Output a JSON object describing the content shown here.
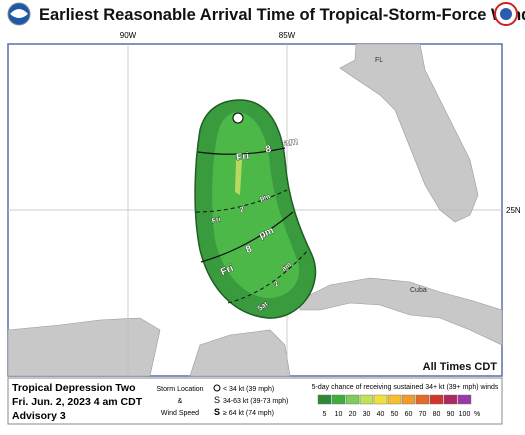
{
  "header": {
    "title": "Earliest Reasonable Arrival Time of Tropical-Storm-Force Winds"
  },
  "map": {
    "lon_labels": [
      "90W",
      "85W"
    ],
    "lat_labels": [
      "25N"
    ],
    "places": [
      "FL",
      "Cuba"
    ],
    "time_labels": [
      {
        "day": "Fri",
        "hour": "8",
        "period": "am"
      },
      {
        "day": "Fri",
        "hour": "2",
        "period": "pm"
      },
      {
        "day": "Fri",
        "hour": "8",
        "period": "pm"
      },
      {
        "day": "Sat",
        "hour": "2",
        "period": "am"
      }
    ],
    "note": "All Times CDT"
  },
  "legend": {
    "storm": [
      "Tropical Depression Two",
      "Fri. Jun. 2, 2023  4 am CDT",
      "Advisory 3"
    ],
    "symbols_title": [
      "Storm Location",
      "&",
      "Wind Speed"
    ],
    "symbols": [
      "< 34 kt (39 mph)",
      "34-63 kt (39-73 mph)",
      "≥ 64 kt (74 mph)"
    ],
    "scale_title": "5-day chance of receiving sustained 34+ kt (39+ mph) winds",
    "scale": [
      5,
      10,
      20,
      30,
      40,
      50,
      60,
      70,
      80,
      90,
      100
    ],
    "scale_unit": "%",
    "scale_colors": [
      "#2a8a3a",
      "#3fae3f",
      "#7ccd5a",
      "#c3e05a",
      "#f0e040",
      "#f5c030",
      "#f09a30",
      "#e36a2a",
      "#d0362a",
      "#b02860",
      "#9a3aa8"
    ]
  }
}
